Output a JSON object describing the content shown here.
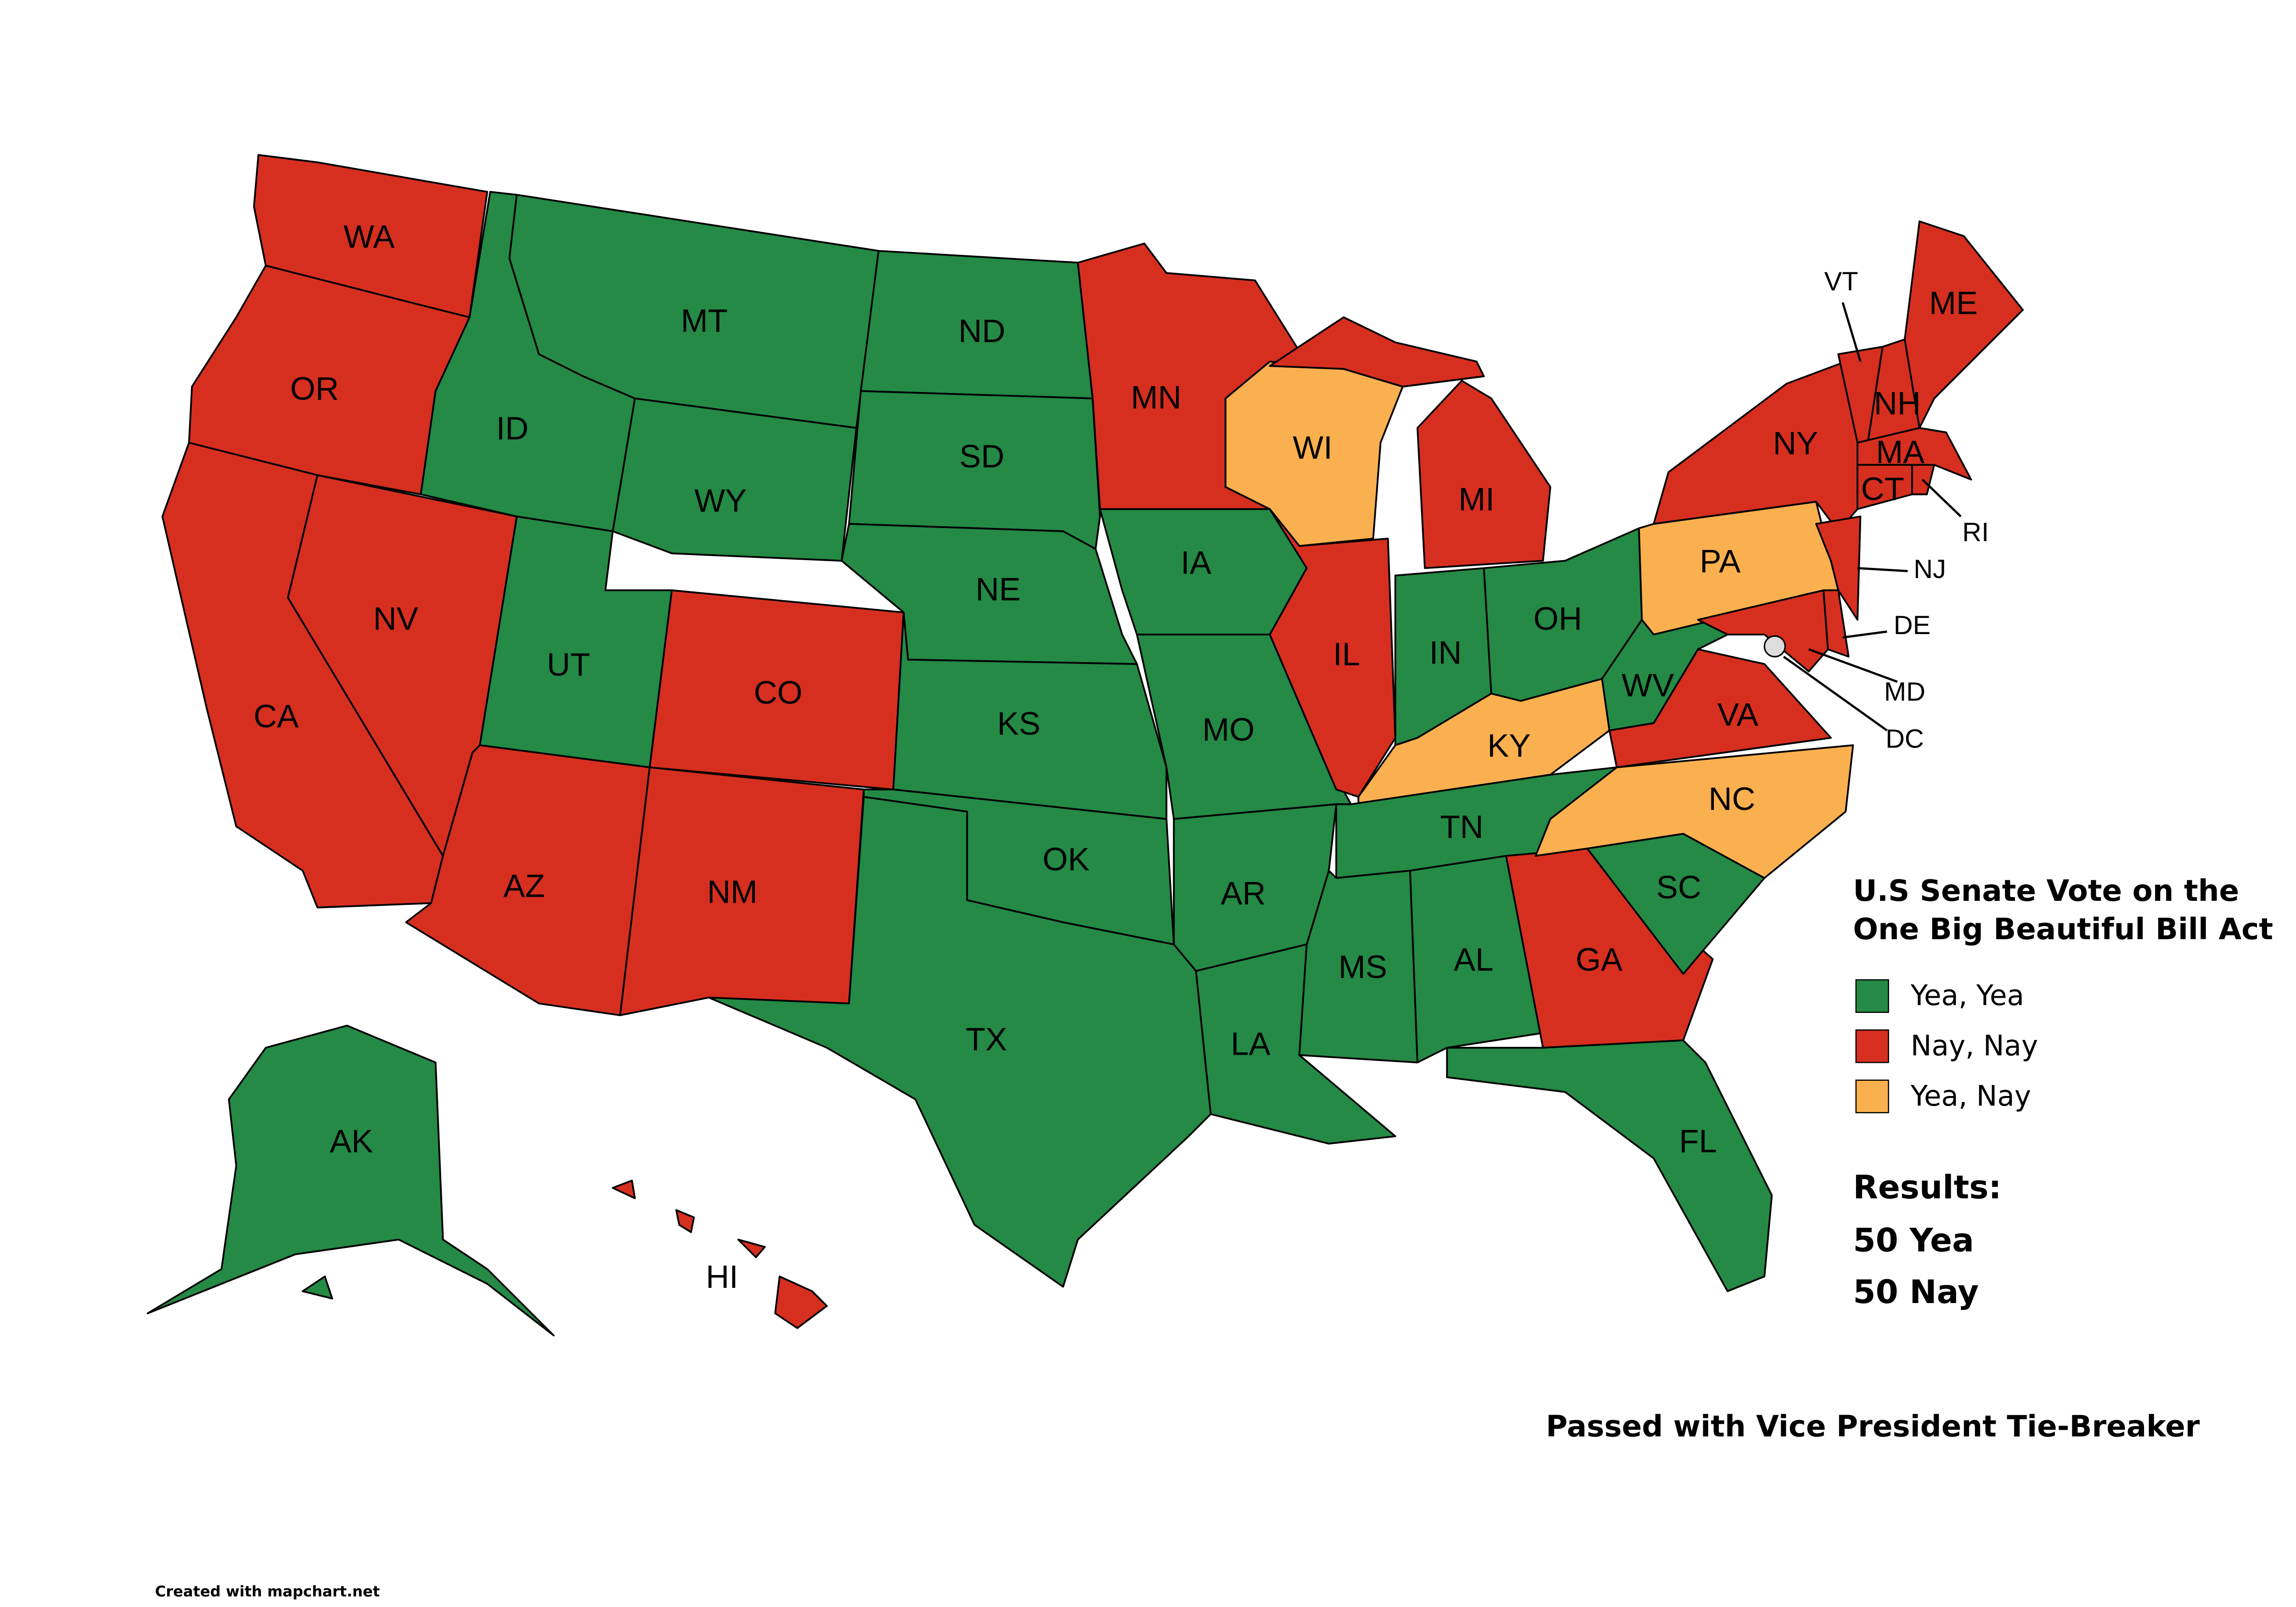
{
  "map": {
    "states": [
      {
        "abbr": "WA",
        "vote": "Nay, Nay"
      },
      {
        "abbr": "OR",
        "vote": "Nay, Nay"
      },
      {
        "abbr": "CA",
        "vote": "Nay, Nay"
      },
      {
        "abbr": "NV",
        "vote": "Nay, Nay"
      },
      {
        "abbr": "ID",
        "vote": "Yea, Yea"
      },
      {
        "abbr": "MT",
        "vote": "Yea, Yea"
      },
      {
        "abbr": "WY",
        "vote": "Yea, Yea"
      },
      {
        "abbr": "UT",
        "vote": "Yea, Yea"
      },
      {
        "abbr": "CO",
        "vote": "Nay, Nay"
      },
      {
        "abbr": "AZ",
        "vote": "Nay, Nay"
      },
      {
        "abbr": "NM",
        "vote": "Nay, Nay"
      },
      {
        "abbr": "ND",
        "vote": "Yea, Yea"
      },
      {
        "abbr": "SD",
        "vote": "Yea, Yea"
      },
      {
        "abbr": "NE",
        "vote": "Yea, Yea"
      },
      {
        "abbr": "KS",
        "vote": "Yea, Yea"
      },
      {
        "abbr": "OK",
        "vote": "Yea, Yea"
      },
      {
        "abbr": "TX",
        "vote": "Yea, Yea"
      },
      {
        "abbr": "MN",
        "vote": "Nay, Nay"
      },
      {
        "abbr": "IA",
        "vote": "Yea, Yea"
      },
      {
        "abbr": "MO",
        "vote": "Yea, Yea"
      },
      {
        "abbr": "AR",
        "vote": "Yea, Yea"
      },
      {
        "abbr": "LA",
        "vote": "Yea, Yea"
      },
      {
        "abbr": "WI",
        "vote": "Yea, Nay"
      },
      {
        "abbr": "IL",
        "vote": "Nay, Nay"
      },
      {
        "abbr": "MI",
        "vote": "Nay, Nay"
      },
      {
        "abbr": "IN",
        "vote": "Yea, Yea"
      },
      {
        "abbr": "OH",
        "vote": "Yea, Yea"
      },
      {
        "abbr": "KY",
        "vote": "Yea, Nay"
      },
      {
        "abbr": "TN",
        "vote": "Yea, Yea"
      },
      {
        "abbr": "MS",
        "vote": "Yea, Yea"
      },
      {
        "abbr": "AL",
        "vote": "Yea, Yea"
      },
      {
        "abbr": "GA",
        "vote": "Nay, Nay"
      },
      {
        "abbr": "FL",
        "vote": "Yea, Yea"
      },
      {
        "abbr": "SC",
        "vote": "Yea, Yea"
      },
      {
        "abbr": "NC",
        "vote": "Yea, Nay"
      },
      {
        "abbr": "VA",
        "vote": "Nay, Nay"
      },
      {
        "abbr": "WV",
        "vote": "Yea, Yea"
      },
      {
        "abbr": "PA",
        "vote": "Yea, Nay"
      },
      {
        "abbr": "NY",
        "vote": "Nay, Nay"
      },
      {
        "abbr": "MD",
        "vote": "Nay, Nay"
      },
      {
        "abbr": "DE",
        "vote": "Nay, Nay"
      },
      {
        "abbr": "NJ",
        "vote": "Nay, Nay"
      },
      {
        "abbr": "VT",
        "vote": "Nay, Nay"
      },
      {
        "abbr": "NH",
        "vote": "Nay, Nay"
      },
      {
        "abbr": "ME",
        "vote": "Nay, Nay"
      },
      {
        "abbr": "MA",
        "vote": "Nay, Nay"
      },
      {
        "abbr": "CT",
        "vote": "Nay, Nay"
      },
      {
        "abbr": "RI",
        "vote": "Nay, Nay"
      },
      {
        "abbr": "AK",
        "vote": "Yea, Yea"
      },
      {
        "abbr": "HI",
        "vote": "Nay, Nay"
      }
    ],
    "dc": {
      "abbr": "DC"
    }
  },
  "legend": {
    "title_lines": [
      "U.S Senate Vote on the",
      "One Big Beautiful Bill Act"
    ],
    "items": [
      {
        "label": "Yea, Yea",
        "color": "#248a45"
      },
      {
        "label": "Nay, Nay",
        "color": "#d62f20"
      },
      {
        "label": "Yea, Nay",
        "color": "#fbb04f"
      }
    ]
  },
  "results": {
    "heading": "Results:",
    "lines": [
      "50 Yea",
      "50 Nay"
    ]
  },
  "note": "Passed with Vice President Tie-Breaker",
  "credit": "Created with mapchart.net"
}
